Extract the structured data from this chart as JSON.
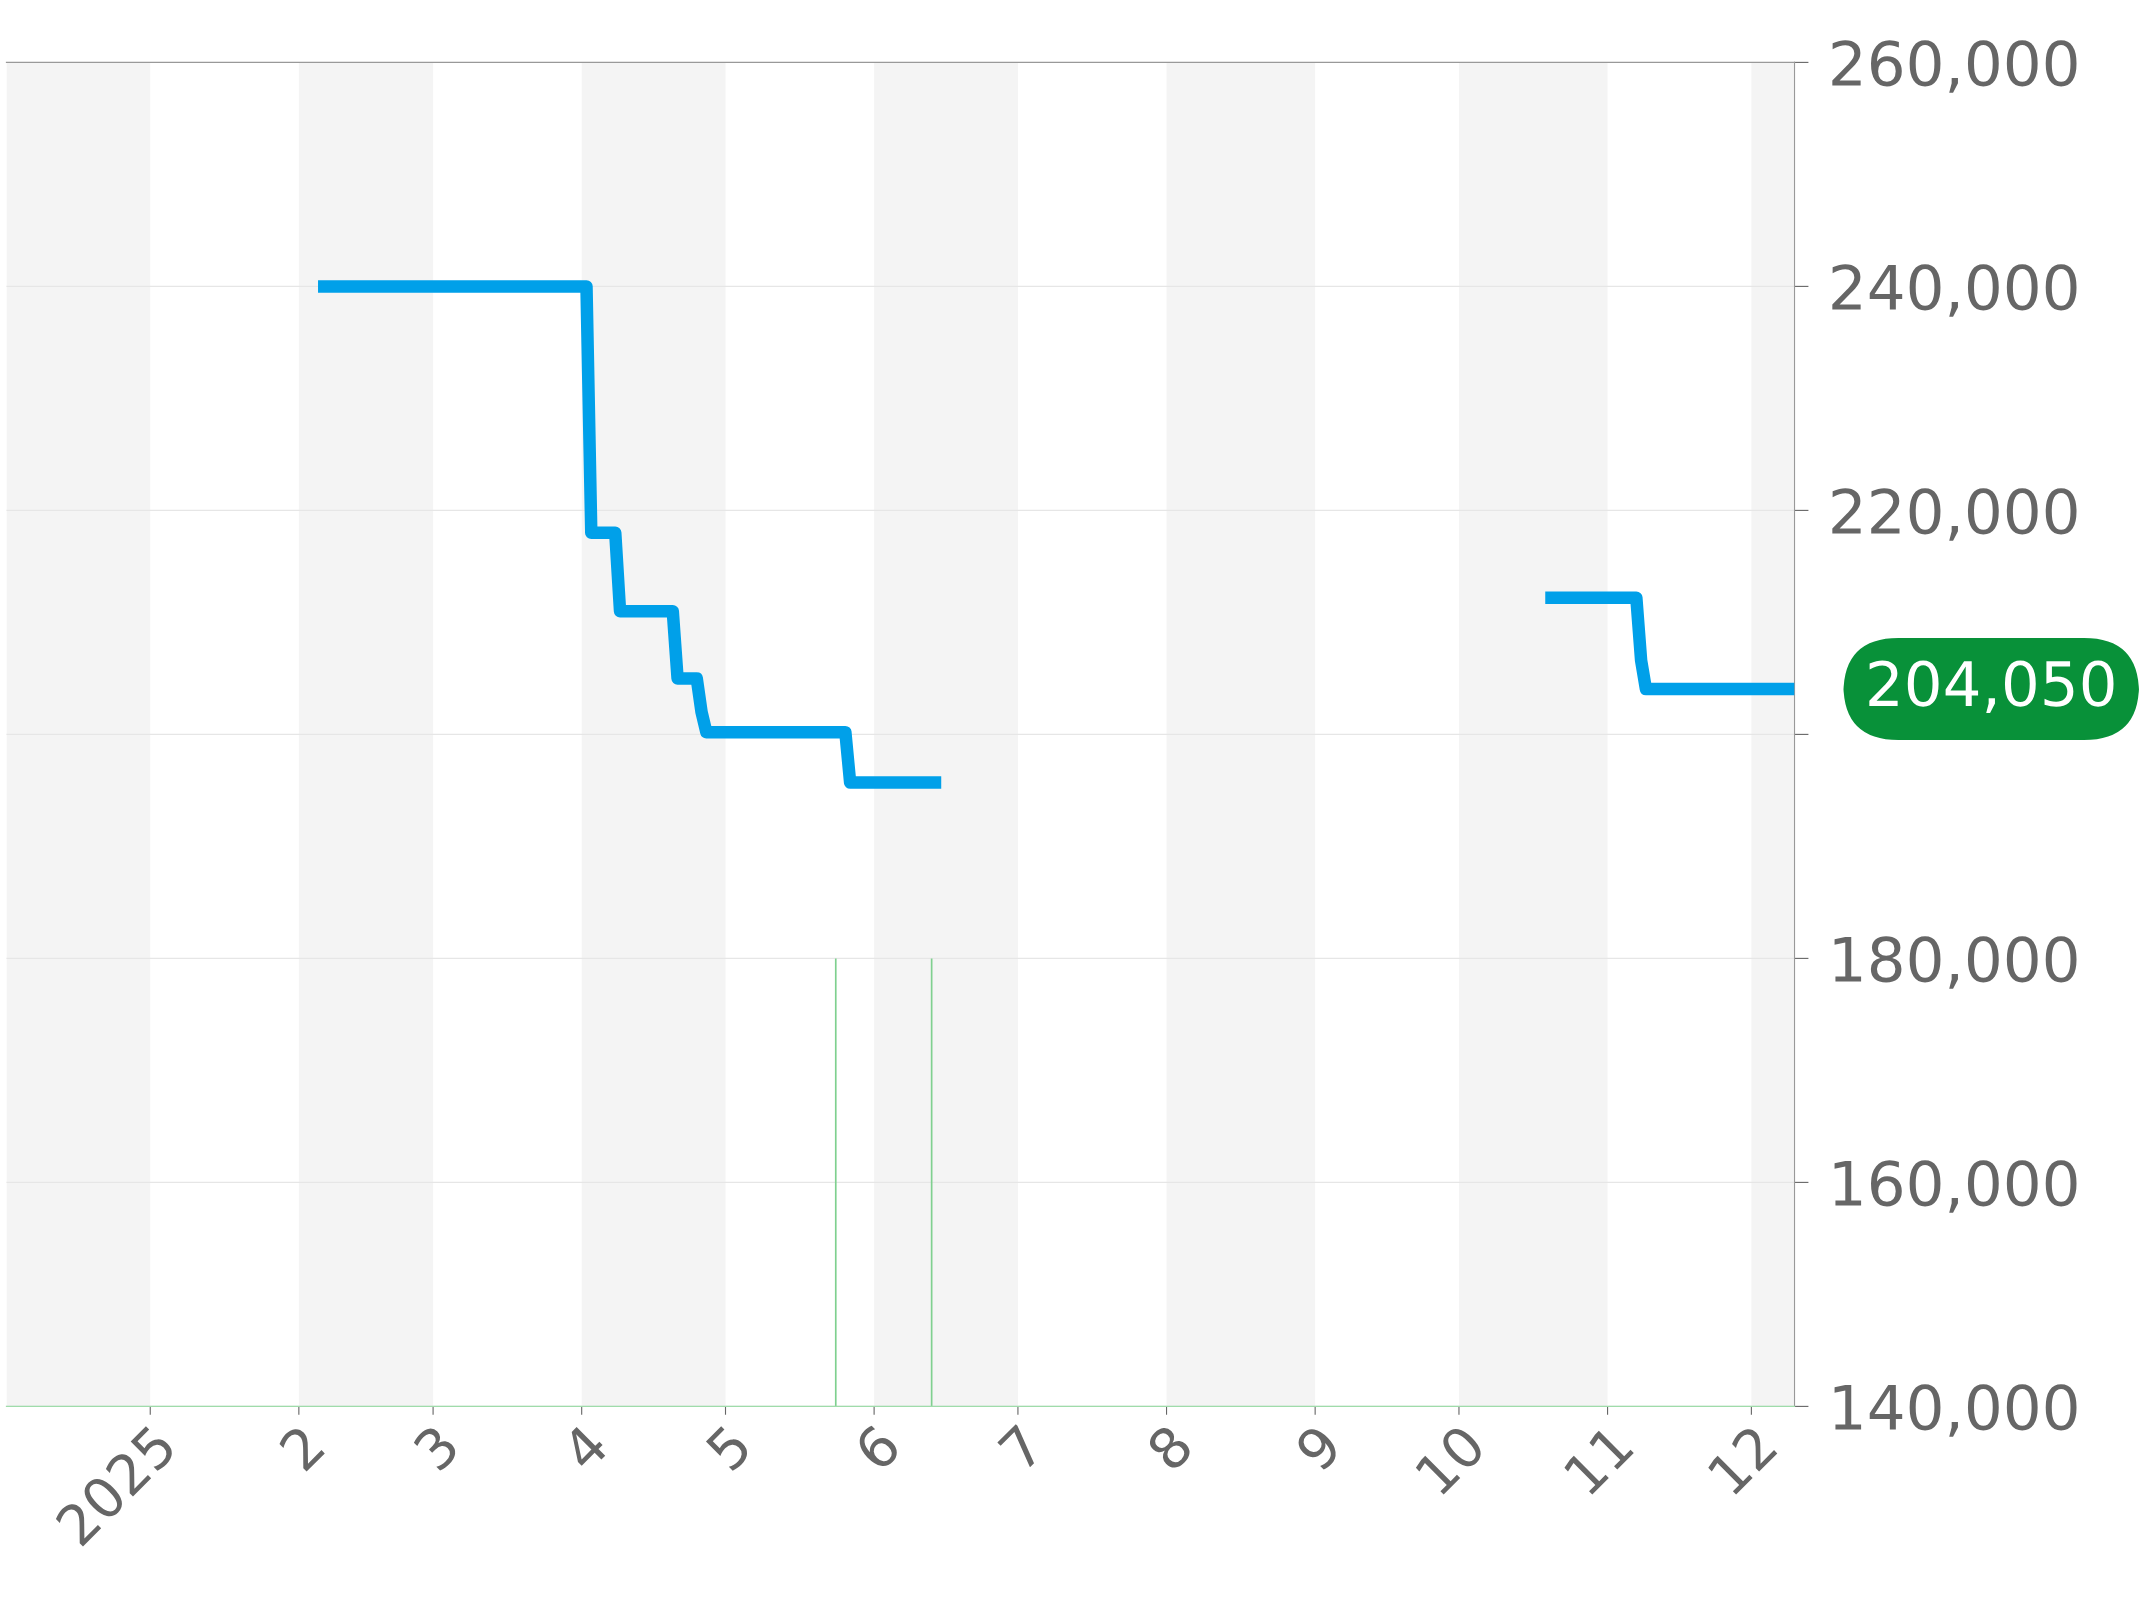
{
  "chart_data": {
    "type": "line",
    "xlim": [
      "2024-12-02",
      "2025-12-10"
    ],
    "xticks": [
      {
        "value": "2025-01-01",
        "label": "2025"
      },
      {
        "value": "2025-02-01",
        "label": "2"
      },
      {
        "value": "2025-03-01",
        "label": "3"
      },
      {
        "value": "2025-04-01",
        "label": "4"
      },
      {
        "value": "2025-05-01",
        "label": "5"
      },
      {
        "value": "2025-06-01",
        "label": "6"
      },
      {
        "value": "2025-07-01",
        "label": "7"
      },
      {
        "value": "2025-08-01",
        "label": "8"
      },
      {
        "value": "2025-09-01",
        "label": "9"
      },
      {
        "value": "2025-10-01",
        "label": "10"
      },
      {
        "value": "2025-11-01",
        "label": "11"
      },
      {
        "value": "2025-12-01",
        "label": "12"
      }
    ],
    "ylim": [
      140000,
      260000
    ],
    "yticks": [
      {
        "value": 140000,
        "label": "140,000"
      },
      {
        "value": 160000,
        "label": "160,000"
      },
      {
        "value": 180000,
        "label": "180,000"
      },
      {
        "value": 200000,
        "label": null
      },
      {
        "value": 220000,
        "label": "220,000"
      },
      {
        "value": 240000,
        "label": "240,000"
      },
      {
        "value": 260000,
        "label": "260,000"
      }
    ],
    "grid": "y",
    "legend": false,
    "marker": "none",
    "line_style": "solid",
    "series": [
      {
        "color": "#00a0e9",
        "x": [
          "2025-02-05",
          "2025-04-02",
          "2025-04-03",
          "2025-04-08",
          "2025-04-09",
          "2025-04-20",
          "2025-04-21",
          "2025-04-25",
          "2025-04-26",
          "2025-04-27",
          "2025-05-26",
          "2025-05-27",
          "2025-06-15"
        ],
        "values": [
          240000,
          240000,
          218000,
          218000,
          211000,
          211000,
          205000,
          205000,
          202000,
          200200,
          200200,
          195700,
          195700
        ]
      },
      {
        "color": "#00a0e9",
        "x": [
          "2025-10-19",
          "2025-11-07",
          "2025-11-08",
          "2025-11-09",
          "2025-12-10"
        ],
        "values": [
          212200,
          212200,
          206600,
          204050,
          204050
        ]
      },
      {
        "type": "bar",
        "color": "#7fd08f",
        "x": [
          "2025-05-24",
          "2025-06-13"
        ],
        "values": [
          180000,
          180000
        ]
      }
    ],
    "bands": [
      {
        "axis": "x",
        "from": "2024-12-02",
        "to": "2025-01-01",
        "color": "#f4f4f4"
      },
      {
        "axis": "x",
        "from": "2025-02-01",
        "to": "2025-03-01",
        "color": "#f4f4f4"
      },
      {
        "axis": "x",
        "from": "2025-04-01",
        "to": "2025-05-01",
        "color": "#f4f4f4"
      },
      {
        "axis": "x",
        "from": "2025-06-01",
        "to": "2025-07-01",
        "color": "#f4f4f4"
      },
      {
        "axis": "x",
        "from": "2025-08-01",
        "to": "2025-09-01",
        "color": "#f4f4f4"
      },
      {
        "axis": "x",
        "from": "2025-10-01",
        "to": "2025-11-01",
        "color": "#f4f4f4"
      },
      {
        "axis": "x",
        "from": "2025-12-01",
        "to": "2025-12-10",
        "color": "#f4f4f4"
      }
    ],
    "annotations": [
      {
        "text": "204,050",
        "x": "2025-12-10",
        "y": 204050
      }
    ]
  }
}
